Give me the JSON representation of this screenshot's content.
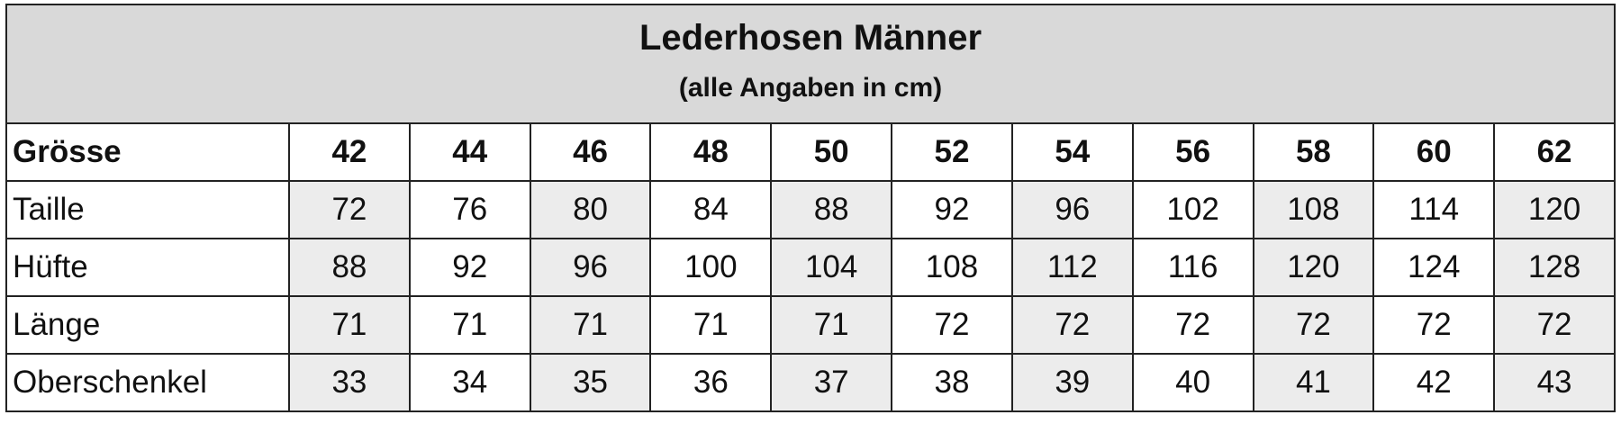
{
  "header": {
    "title": "Lederhosen Männer",
    "subtitle": "(alle Angaben in cm)"
  },
  "table": {
    "columns": [
      "Grösse",
      42,
      44,
      46,
      48,
      50,
      52,
      54,
      56,
      58,
      60,
      62
    ],
    "rows": [
      [
        "Taille",
        72,
        76,
        80,
        84,
        88,
        92,
        96,
        102,
        108,
        114,
        120
      ],
      [
        "Hüfte",
        88,
        92,
        96,
        100,
        104,
        108,
        112,
        116,
        120,
        124,
        128
      ],
      [
        "Länge",
        71,
        71,
        71,
        71,
        71,
        72,
        72,
        72,
        72,
        72,
        72
      ],
      [
        "Oberschenkel",
        33,
        34,
        35,
        36,
        37,
        38,
        39,
        40,
        41,
        42,
        43
      ]
    ]
  }
}
